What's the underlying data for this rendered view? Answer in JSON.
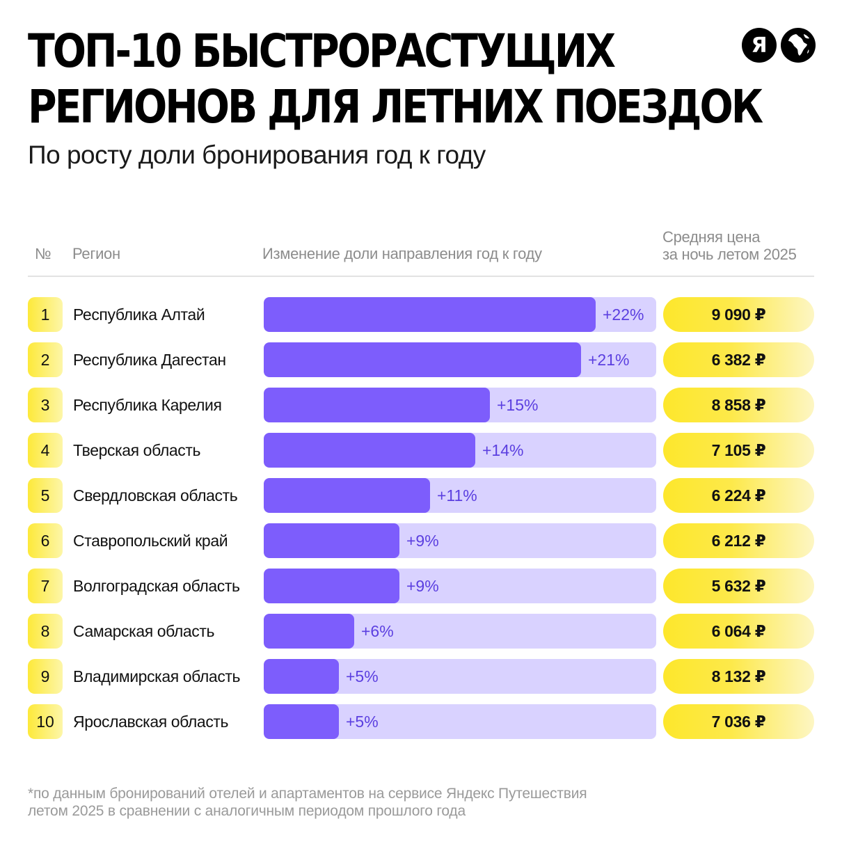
{
  "header": {
    "title_line1": "ТОП-10 БЫСТРОРАСТУЩИХ",
    "title_line2": "РЕГИОНОВ ДЛЯ ЛЕТНИХ ПОЕЗДОК",
    "subtitle": "По росту доли бронирования год к году",
    "logo_letter": "Я"
  },
  "columns": {
    "num": "№",
    "region": "Регион",
    "change": "Изменение доли направления год к году",
    "price_line1": "Средняя цена",
    "price_line2": "за ночь летом 2025"
  },
  "colors": {
    "bar_fill": "#7d5dfc",
    "bar_track": "#d9d2ff",
    "accent_yellow": "#fde72c",
    "percent_text": "#5b3fe0"
  },
  "chart_data": {
    "type": "bar",
    "orientation": "horizontal",
    "xlim": [
      0,
      26
    ],
    "categories": [
      "Республика Алтай",
      "Республика Дагестан",
      "Республика Карелия",
      "Тверская область",
      "Свердловская область",
      "Ставропольский край",
      "Волгоградская область",
      "Самарская область",
      "Владимирская область",
      "Ярославская область"
    ],
    "values": [
      22,
      21,
      15,
      14,
      11,
      9,
      9,
      6,
      5,
      5
    ],
    "value_labels": [
      "+22%",
      "+21%",
      "+15%",
      "+14%",
      "+11%",
      "+9%",
      "+9%",
      "+6%",
      "+5%",
      "+5%"
    ],
    "ranks": [
      "1",
      "2",
      "3",
      "4",
      "5",
      "6",
      "7",
      "8",
      "9",
      "10"
    ],
    "prices": [
      "9 090 ₽",
      "6 382 ₽",
      "8 858 ₽",
      "7 105 ₽",
      "6 224 ₽",
      "6 212 ₽",
      "5 632 ₽",
      "6 064 ₽",
      "8 132 ₽",
      "7 036 ₽"
    ]
  },
  "footnote": {
    "line1": "*по данным бронирований отелей и апартаментов на сервисе Яндекс Путешествия",
    "line2": "летом 2025 в сравнении с аналогичным периодом прошлого года"
  }
}
